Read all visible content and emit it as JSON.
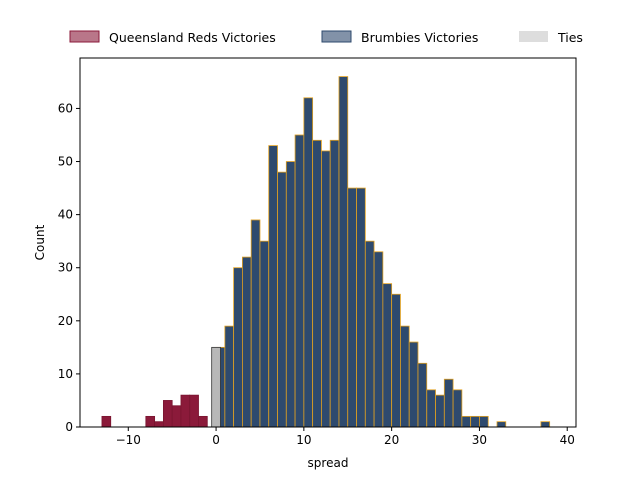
{
  "chart_data": {
    "type": "bar",
    "title": "",
    "xlabel": "spread",
    "ylabel": "Count",
    "xlim": [
      -15.5,
      41
    ],
    "ylim": [
      0,
      69.5
    ],
    "xticks": [
      -10,
      0,
      10,
      20,
      30,
      40
    ],
    "yticks": [
      0,
      10,
      20,
      30,
      40,
      50,
      60
    ],
    "grid": false,
    "legend_position": "top",
    "bin_width": 1,
    "series": [
      {
        "name": "Queensland Reds Victories",
        "color": "#8b1a3a",
        "edge_color": "#7a1530",
        "bins": [
          {
            "x0": -13,
            "count": 2
          },
          {
            "x0": -8,
            "count": 2
          },
          {
            "x0": -7,
            "count": 1
          },
          {
            "x0": -6,
            "count": 5
          },
          {
            "x0": -5,
            "count": 4
          },
          {
            "x0": -4,
            "count": 6
          },
          {
            "x0": -3,
            "count": 6
          },
          {
            "x0": -2,
            "count": 2
          }
        ]
      },
      {
        "name": "Brumbies Victories",
        "color": "#2e4a6e",
        "edge_color": "#e0a020",
        "bins": [
          {
            "x0": 0,
            "count": 15
          },
          {
            "x0": 1,
            "count": 19
          },
          {
            "x0": 2,
            "count": 30
          },
          {
            "x0": 3,
            "count": 32
          },
          {
            "x0": 4,
            "count": 39
          },
          {
            "x0": 5,
            "count": 35
          },
          {
            "x0": 6,
            "count": 53
          },
          {
            "x0": 7,
            "count": 48
          },
          {
            "x0": 8,
            "count": 50
          },
          {
            "x0": 9,
            "count": 55
          },
          {
            "x0": 10,
            "count": 62
          },
          {
            "x0": 11,
            "count": 54
          },
          {
            "x0": 12,
            "count": 52
          },
          {
            "x0": 13,
            "count": 54
          },
          {
            "x0": 14,
            "count": 66
          },
          {
            "x0": 15,
            "count": 45
          },
          {
            "x0": 16,
            "count": 45
          },
          {
            "x0": 17,
            "count": 35
          },
          {
            "x0": 18,
            "count": 33
          },
          {
            "x0": 19,
            "count": 27
          },
          {
            "x0": 20,
            "count": 25
          },
          {
            "x0": 21,
            "count": 19
          },
          {
            "x0": 22,
            "count": 16
          },
          {
            "x0": 23,
            "count": 12
          },
          {
            "x0": 24,
            "count": 7
          },
          {
            "x0": 25,
            "count": 6
          },
          {
            "x0": 26,
            "count": 9
          },
          {
            "x0": 27,
            "count": 7
          },
          {
            "x0": 28,
            "count": 2
          },
          {
            "x0": 29,
            "count": 2
          },
          {
            "x0": 30,
            "count": 2
          },
          {
            "x0": 32,
            "count": 1
          },
          {
            "x0": 37,
            "count": 1
          }
        ]
      },
      {
        "name": "Ties",
        "color": "#b8b8b8",
        "legend_color": "#dddddd",
        "edge_color": "#333333",
        "bins": [
          {
            "x0": -0.5,
            "count": 15
          }
        ]
      }
    ]
  }
}
